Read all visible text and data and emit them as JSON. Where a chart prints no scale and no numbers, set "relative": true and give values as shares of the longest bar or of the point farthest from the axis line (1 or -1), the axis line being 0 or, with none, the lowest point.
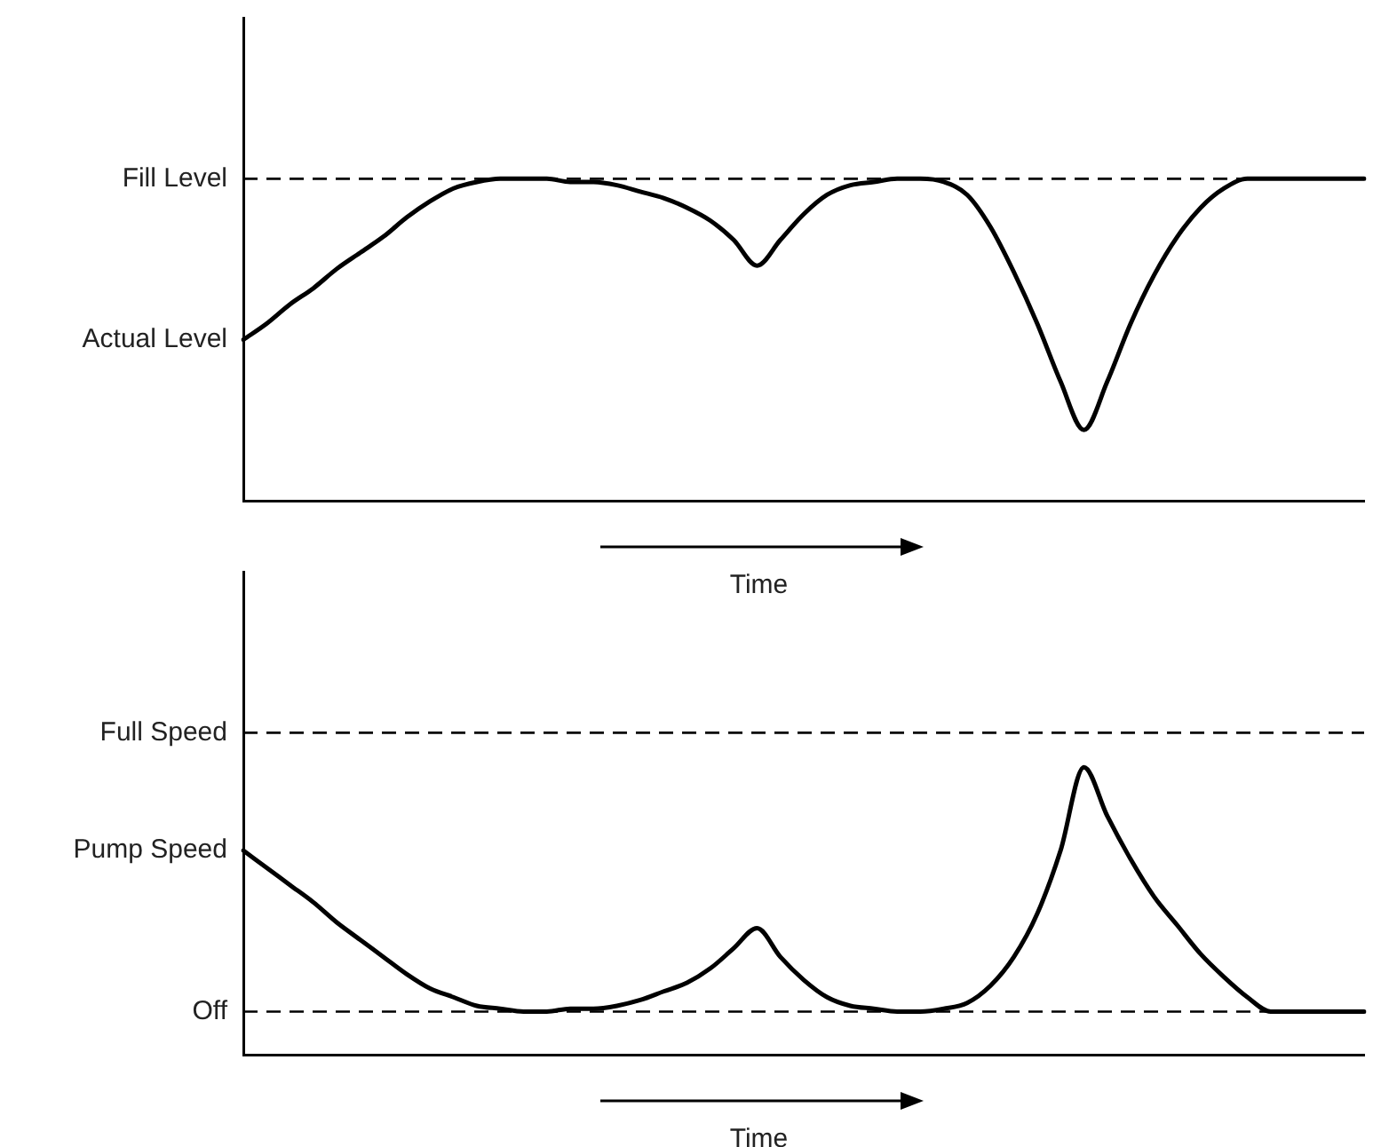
{
  "chart_data": [
    {
      "type": "line",
      "relative": true,
      "xlabel": "Time",
      "marker": "none",
      "line_style": "solid",
      "categories": [
        null,
        null,
        null,
        null,
        null,
        null,
        null,
        null,
        null,
        null,
        null,
        null,
        null,
        null,
        null,
        null,
        null,
        null,
        null,
        null,
        null,
        null,
        null,
        null,
        null,
        null,
        null,
        null,
        null,
        null,
        null,
        null,
        null,
        null,
        null,
        null,
        null,
        null,
        null,
        null,
        null,
        null,
        null,
        null,
        null,
        null,
        null,
        null,
        null
      ],
      "series": [
        {
          "name": "Actual Level",
          "color": "#000000",
          "values": [
            0.5,
            0.55,
            0.61,
            0.66,
            0.72,
            0.77,
            0.82,
            0.88,
            0.93,
            0.97,
            0.99,
            1,
            1,
            1,
            0.99,
            0.99,
            0.98,
            0.96,
            0.94,
            0.91,
            0.87,
            0.81,
            0.73,
            0.81,
            0.89,
            0.95,
            0.98,
            0.99,
            1,
            1,
            0.99,
            0.95,
            0.85,
            0.71,
            0.55,
            0.37,
            0.22,
            0.37,
            0.55,
            0.7,
            0.82,
            0.91,
            0.97,
            1,
            1,
            1,
            1,
            1,
            1
          ]
        }
      ],
      "ref_lines": [
        {
          "axis": "y",
          "value": 1,
          "label": "Fill Level",
          "line_style": "dashed",
          "color": "#000000"
        }
      ]
    },
    {
      "type": "line",
      "relative": true,
      "xlabel": "Time",
      "marker": "none",
      "line_style": "solid",
      "categories": [
        null,
        null,
        null,
        null,
        null,
        null,
        null,
        null,
        null,
        null,
        null,
        null,
        null,
        null,
        null,
        null,
        null,
        null,
        null,
        null,
        null,
        null,
        null,
        null,
        null,
        null,
        null,
        null,
        null,
        null,
        null,
        null,
        null,
        null,
        null,
        null,
        null,
        null,
        null,
        null,
        null,
        null,
        null,
        null,
        null,
        null,
        null,
        null,
        null
      ],
      "series": [
        {
          "name": "Pump Speed",
          "color": "#000000",
          "values": [
            0.71,
            0.65,
            0.59,
            0.53,
            0.46,
            0.4,
            0.34,
            0.28,
            0.23,
            0.2,
            0.17,
            0.16,
            0.15,
            0.15,
            0.16,
            0.16,
            0.17,
            0.19,
            0.22,
            0.25,
            0.3,
            0.37,
            0.44,
            0.34,
            0.26,
            0.2,
            0.17,
            0.16,
            0.15,
            0.15,
            0.16,
            0.18,
            0.24,
            0.34,
            0.49,
            0.71,
            1,
            0.83,
            0.68,
            0.55,
            0.45,
            0.35,
            0.27,
            0.2,
            0.15,
            0.15,
            0.15,
            0.15,
            0.15
          ]
        }
      ],
      "ref_lines": [
        {
          "axis": "y",
          "value": 1.12,
          "label": "Full Speed",
          "line_style": "dashed",
          "color": "#000000"
        },
        {
          "axis": "y",
          "value": 0.15,
          "label": "Off",
          "line_style": "dashed",
          "color": "#000000"
        }
      ]
    }
  ]
}
